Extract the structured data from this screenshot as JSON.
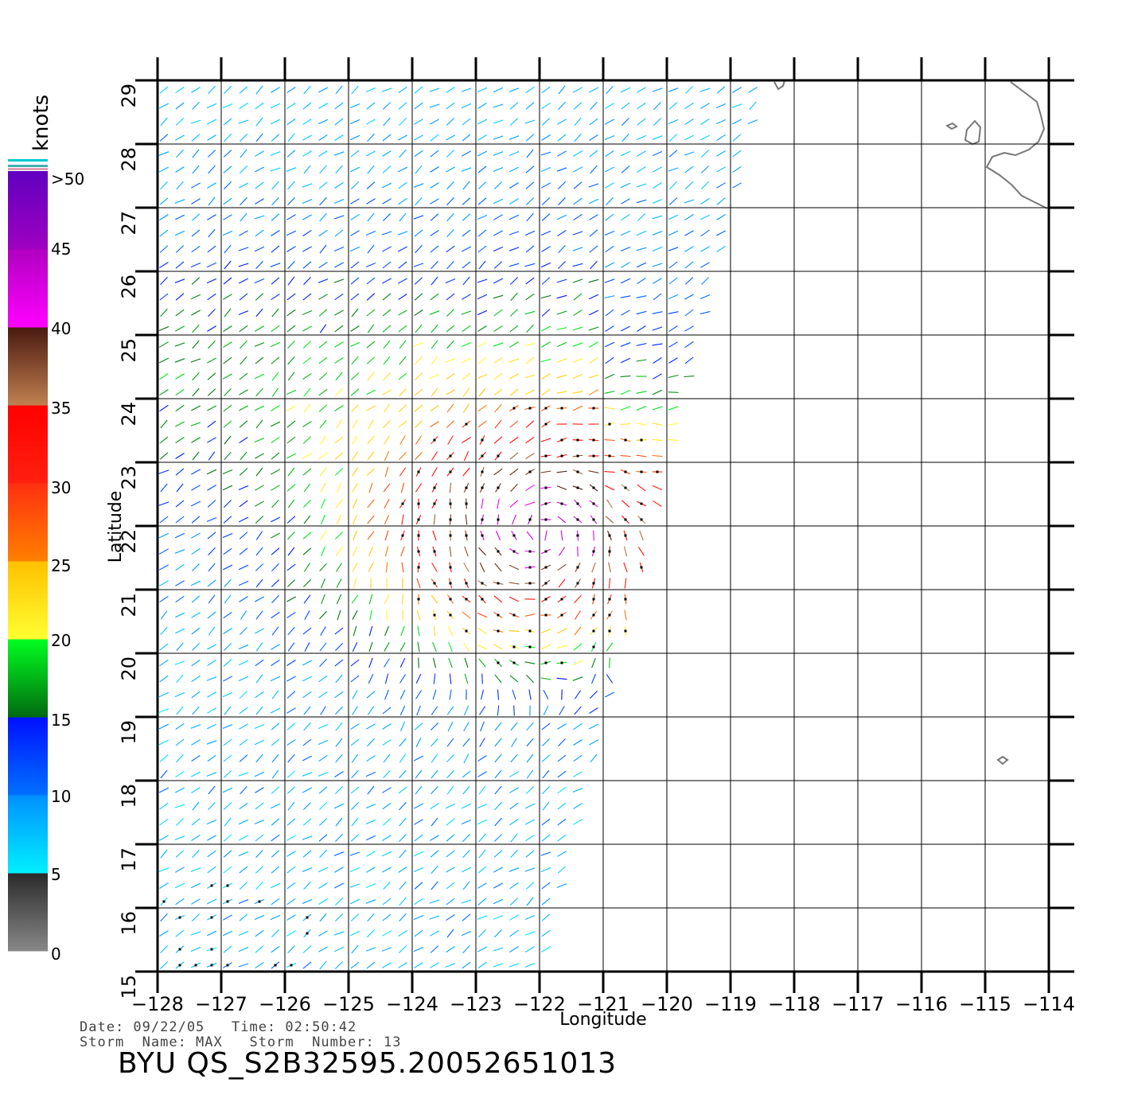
{
  "chart_data": {
    "type": "wind_vector_map",
    "xlabel": "Longitude",
    "ylabel": "Latitude",
    "xlim": [
      -128,
      -114
    ],
    "ylim": [
      15,
      29
    ],
    "x_ticks": [
      -128,
      -127,
      -126,
      -125,
      -124,
      -123,
      -122,
      -121,
      -120,
      -119,
      -118,
      -117,
      -116,
      -115,
      -114
    ],
    "x_tick_labels": [
      "−128",
      "−127",
      "−126",
      "−125",
      "−124",
      "−123",
      "−122",
      "−121",
      "−120",
      "−119",
      "−118",
      "−117",
      "−116",
      "−115",
      "−114"
    ],
    "y_ticks": [
      15,
      16,
      17,
      18,
      19,
      20,
      21,
      22,
      23,
      24,
      25,
      26,
      27,
      28,
      29
    ],
    "y_tick_labels": [
      "15",
      "16",
      "17",
      "18",
      "19",
      "20",
      "21",
      "22",
      "23",
      "24",
      "25",
      "26",
      "27",
      "28",
      "29"
    ],
    "grid": true,
    "swath_edge": {
      "lat": [
        29,
        15
      ],
      "lon": [
        -118.45,
        -121.95
      ]
    },
    "wind_field": {
      "storm_center_lon": -122.0,
      "storm_center_lat": 21.9,
      "lat_step": 0.25,
      "lon_step": 0.25
    },
    "colorbar": {
      "unit": "knots",
      "labels": [
        ">50",
        "45",
        "40",
        "35",
        "30",
        "25",
        "20",
        "15",
        "10",
        "5",
        "0"
      ],
      "segments": [
        {
          "from": 0,
          "to": 5,
          "top": "#2a2a2a",
          "bottom": "#888888"
        },
        {
          "from": 5,
          "to": 10,
          "top": "#0090ff",
          "bottom": "#00f0ff"
        },
        {
          "from": 10,
          "to": 15,
          "top": "#0010ff",
          "bottom": "#0070ff"
        },
        {
          "from": 15,
          "to": 20,
          "top": "#00ff20",
          "bottom": "#006a10"
        },
        {
          "from": 20,
          "to": 25,
          "top": "#ffc000",
          "bottom": "#ffff30"
        },
        {
          "from": 25,
          "to": 30,
          "top": "#ff3010",
          "bottom": "#ff8000"
        },
        {
          "from": 30,
          "to": 35,
          "top": "#ff0000",
          "bottom": "#ff2010"
        },
        {
          "from": 35,
          "to": 40,
          "top": "#4a1a10",
          "bottom": "#c08050"
        },
        {
          "from": 40,
          "to": 45,
          "top": "#b000c0",
          "bottom": "#ff00ff"
        },
        {
          "from": 45,
          "to": 50,
          "top": "#6000c0",
          "bottom": "#a000c0"
        }
      ]
    }
  },
  "info": {
    "line1": "Date: 09/22/05   Time: 02:50:42",
    "line2": "Storm  Name: MAX   Storm  Number: 13"
  },
  "product_title": "BYU  QS_S2B32595.20052651013",
  "colors": {
    "coast": "#777777",
    "rain_flag": "#000000"
  }
}
